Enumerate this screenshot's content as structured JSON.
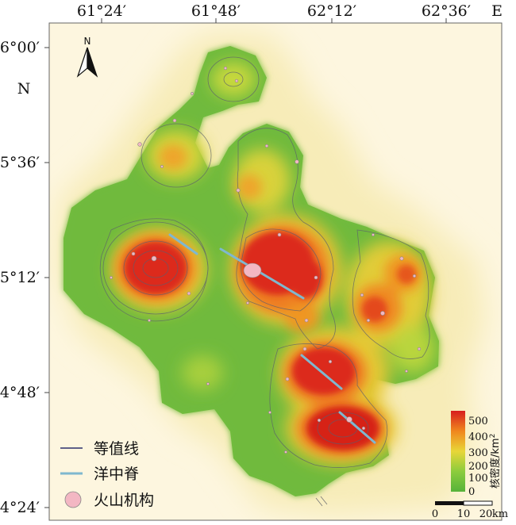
{
  "axes": {
    "top_ticks": [
      "61°24′",
      "61°48′",
      "62°12′",
      "62°36′"
    ],
    "top_dir": "E",
    "left_ticks": [
      "6°00′",
      "5°36′",
      "5°12′",
      "4°48′",
      "4°24′"
    ],
    "left_dir": "N"
  },
  "north_arrow": {
    "label": "N",
    "icon": "north-arrow-icon"
  },
  "legend": {
    "items": [
      {
        "label": "等值线",
        "color": "#2b2f6b",
        "icon": "contour-line-icon"
      },
      {
        "label": "洋中脊",
        "color": "#7fb8cf",
        "icon": "ridge-line-icon"
      },
      {
        "label": "火山机构",
        "color": "#f3b7c3",
        "icon": "volcano-circle-icon"
      }
    ]
  },
  "colorbar": {
    "title": "核密度/km",
    "title_sup": "2",
    "ticks": [
      "500",
      "400",
      "300",
      "200",
      "100",
      "0"
    ],
    "colors": [
      "#d71e1e",
      "#f0861d",
      "#e8d638",
      "#8ccc3c",
      "#56b33a"
    ]
  },
  "scale_bar": {
    "ticks": [
      "0",
      "10",
      "20"
    ],
    "unit": "km"
  }
}
